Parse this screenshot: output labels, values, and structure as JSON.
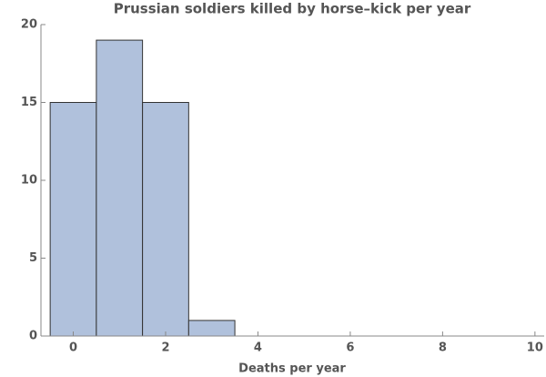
{
  "chart_data": {
    "type": "histogram",
    "title": "Prussian soldiers killed by horse–kick per year",
    "x_label": "Deaths per year",
    "bins": [
      -0.5,
      0.5,
      1.5,
      2.5,
      3.5
    ],
    "counts": [
      15,
      19,
      15,
      1
    ],
    "color": "#b0c1dc",
    "edge_color": "#333333",
    "xlim": [
      -0.7,
      10.2
    ],
    "xticks": [
      0,
      2,
      4,
      6,
      8,
      10
    ],
    "ylim": [
      0,
      20
    ],
    "yticks": [
      0,
      5,
      10,
      15,
      20
    ],
    "grid": false
  }
}
